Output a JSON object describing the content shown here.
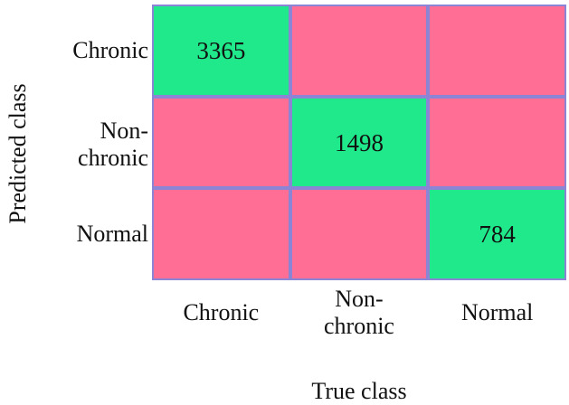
{
  "chart_data": {
    "type": "heatmap",
    "xlabel": "True class",
    "ylabel": "Predicted class",
    "x_categories": [
      "Chronic",
      "Non-\nchronic",
      "Normal"
    ],
    "y_categories": [
      "Chronic",
      "Non-\nchronic",
      "Normal"
    ],
    "values": [
      [
        "3365",
        null,
        null
      ],
      [
        null,
        "1498",
        null
      ],
      [
        null,
        null,
        "784"
      ]
    ],
    "colors": {
      "diagonal": "#1fe98b",
      "off_diagonal": "#fe6e95",
      "border": "#8c84d4"
    }
  }
}
